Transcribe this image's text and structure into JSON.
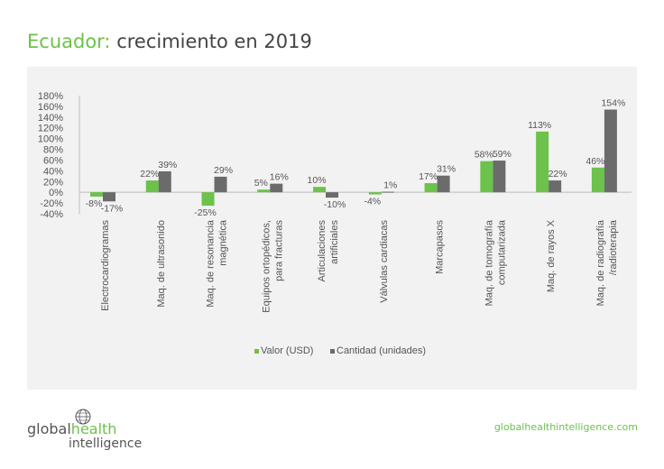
{
  "title": {
    "country": "Ecuador:",
    "text": "crecimiento en 2019"
  },
  "footer": {
    "url": "globalhealthintelligence.com"
  },
  "logo": {
    "line1a": "global",
    "line1b": "health",
    "line2": "intelligence"
  },
  "colors": {
    "valor": "#6cc24a",
    "cantidad": "#6b6b6b",
    "accent": "#6cc24a"
  },
  "chart_data": {
    "type": "bar",
    "categories": [
      [
        "Electrocardiogramas"
      ],
      [
        "Maq. de ultrasonido"
      ],
      [
        "Maq. de resonancia",
        "magnética"
      ],
      [
        "Equipos ortopédicos,",
        "para fracturas"
      ],
      [
        "Articulaciones",
        "artificiales"
      ],
      [
        "Válvulas cardiacas"
      ],
      [
        "Marcapasos"
      ],
      [
        "Maq. de tomografía",
        "computarizada"
      ],
      [
        "Maq. de rayos X"
      ],
      [
        "Maq. de radiografía",
        "/radioterapia"
      ]
    ],
    "series": [
      {
        "name": "Valor (USD)",
        "values": [
          -8,
          22,
          -25,
          5,
          10,
          -4,
          17,
          58,
          113,
          46
        ]
      },
      {
        "name": "Cantidad (unidades)",
        "values": [
          -17,
          39,
          29,
          16,
          -10,
          1,
          31,
          59,
          22,
          154
        ]
      }
    ],
    "data_labels": [
      [
        "-8%",
        "22%",
        "-25%",
        "5%",
        "10%",
        "-4%",
        "17%",
        "58%",
        "113%",
        "46%"
      ],
      [
        "-17%",
        "39%",
        "29%",
        "16%",
        "-10%",
        "1%",
        "31%",
        "59%",
        "22%",
        "154%"
      ]
    ],
    "y_ticks": [
      "180%",
      "160%",
      "140%",
      "120%",
      "100%",
      "80%",
      "60%",
      "40%",
      "20%",
      "0%",
      "-20%",
      "-40%"
    ],
    "ylim": [
      -40,
      180
    ],
    "grid": false,
    "legend": "bottom"
  }
}
